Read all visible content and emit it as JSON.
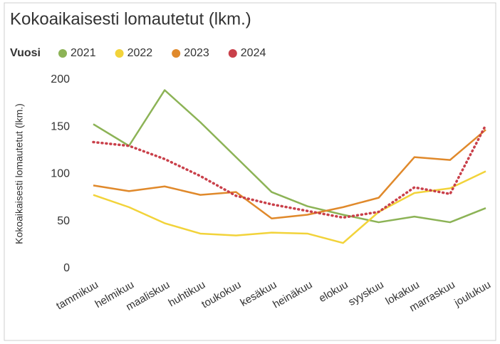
{
  "chart_data": {
    "type": "line",
    "title": "Kokoaikaisesti lomautetut (lkm.)",
    "legend_title": "Vuosi",
    "y_label": "Kokoaikaisesti lomautetut (lkm.)",
    "categories": [
      "tammikuu",
      "helmikuu",
      "maaliskuu",
      "huhtikuu",
      "toukokuu",
      "kesäkuu",
      "heinäkuu",
      "elokuu",
      "syyskuu",
      "lokakuu",
      "marraskuu",
      "joulukuu"
    ],
    "series": [
      {
        "name": "2021",
        "color": "#8cb356",
        "dash": false,
        "values": [
          153,
          130,
          189,
          155,
          118,
          81,
          66,
          57,
          49,
          55,
          49,
          64
        ]
      },
      {
        "name": "2022",
        "color": "#f2d33a",
        "dash": false,
        "values": [
          78,
          65,
          48,
          37,
          35,
          38,
          37,
          27,
          60,
          80,
          85,
          103
        ]
      },
      {
        "name": "2023",
        "color": "#e0892b",
        "dash": false,
        "values": [
          88,
          82,
          87,
          78,
          81,
          53,
          57,
          65,
          75,
          118,
          115,
          147
        ]
      },
      {
        "name": "2024",
        "color": "#c9404a",
        "dash": true,
        "values": [
          134,
          130,
          116,
          98,
          77,
          68,
          61,
          54,
          60,
          86,
          79,
          152
        ]
      }
    ],
    "ylim": [
      0,
      200
    ],
    "yticks": [
      0,
      50,
      100,
      150,
      200
    ],
    "grid": false,
    "legend": "top"
  }
}
